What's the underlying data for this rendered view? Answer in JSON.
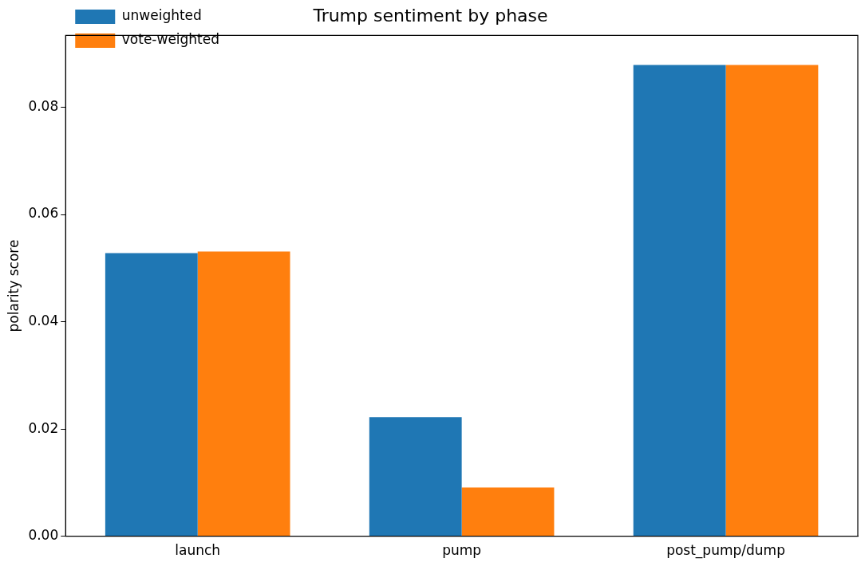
{
  "chart_data": {
    "type": "bar",
    "title": "Trump sentiment by phase",
    "ylabel": "polarity score",
    "categories": [
      "launch",
      "pump",
      "post_pump/dump"
    ],
    "series": [
      {
        "name": "unweighted",
        "color": "#1f77b4",
        "values": [
          0.0528,
          0.0222,
          0.0879
        ]
      },
      {
        "name": "vote-weighted",
        "color": "#ff7f0e",
        "values": [
          0.0531,
          0.0091,
          0.0879
        ]
      }
    ],
    "ylim": [
      0,
      0.0934
    ],
    "yticks": [
      {
        "value": 0,
        "label": "0.00"
      },
      {
        "value": 0.02,
        "label": "0.02"
      },
      {
        "value": 0.04,
        "label": "0.04"
      },
      {
        "value": 0.06,
        "label": "0.06"
      },
      {
        "value": 0.08,
        "label": "0.08"
      }
    ],
    "grid": false,
    "legend": "top left"
  }
}
